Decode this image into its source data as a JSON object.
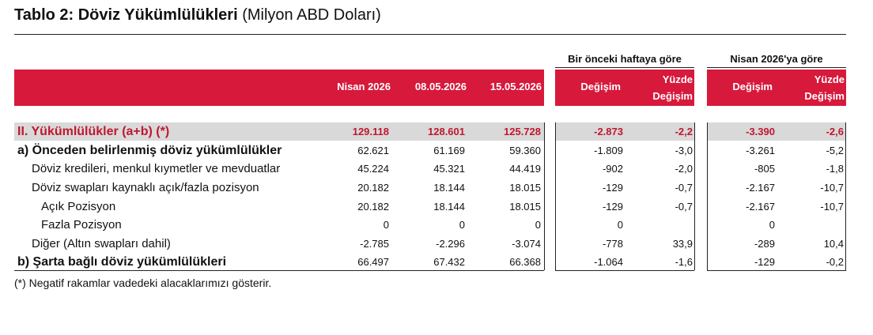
{
  "title": {
    "bold": "Tablo 2: Döviz Yükümlülükleri",
    "sub": "(Milyon ABD Doları)"
  },
  "groups": {
    "weekly": "Bir önceki haftaya göre",
    "monthly": "Nisan 2026'ya göre"
  },
  "headers": {
    "col1": "Nisan 2026",
    "col2": "08.05.2026",
    "col3": "15.05.2026",
    "w_change": "Değişim",
    "w_pct_l1": "Yüzde",
    "w_pct_l2": "Değişim",
    "m_change": "Değişim",
    "m_pct_l1": "Yüzde",
    "m_pct_l2": "Değişim"
  },
  "rows": [
    {
      "label": "II. Yükümlülükler (a+b) (*)",
      "c1": "129.118",
      "c2": "128.601",
      "c3": "125.728",
      "wc": "-2.873",
      "wp": "-2,2",
      "mc": "-3.390",
      "mp": "-2,6"
    },
    {
      "label": "a) Önceden belirlenmiş döviz yükümlülükler",
      "c1": "62.621",
      "c2": "61.169",
      "c3": "59.360",
      "wc": "-1.809",
      "wp": "-3,0",
      "mc": "-3.261",
      "mp": "-5,2"
    },
    {
      "label": "Döviz kredileri, menkul kıymetler ve mevduatlar",
      "c1": "45.224",
      "c2": "45.321",
      "c3": "44.419",
      "wc": "-902",
      "wp": "-2,0",
      "mc": "-805",
      "mp": "-1,8"
    },
    {
      "label": "Döviz swapları kaynaklı açık/fazla pozisyon",
      "c1": "20.182",
      "c2": "18.144",
      "c3": "18.015",
      "wc": "-129",
      "wp": "-0,7",
      "mc": "-2.167",
      "mp": "-10,7"
    },
    {
      "label": "Açık Pozisyon",
      "c1": "20.182",
      "c2": "18.144",
      "c3": "18.015",
      "wc": "-129",
      "wp": "-0,7",
      "mc": "-2.167",
      "mp": "-10,7"
    },
    {
      "label": "Fazla Pozisyon",
      "c1": "0",
      "c2": "0",
      "c3": "0",
      "wc": "0",
      "wp": "",
      "mc": "0",
      "mp": ""
    },
    {
      "label": "Diğer (Altın swapları dahil)",
      "c1": "-2.785",
      "c2": "-2.296",
      "c3": "-3.074",
      "wc": "-778",
      "wp": "33,9",
      "mc": "-289",
      "mp": "10,4"
    },
    {
      "label": "b) Şarta bağlı döviz yükümlülükleri",
      "c1": "66.497",
      "c2": "67.432",
      "c3": "66.368",
      "wc": "-1.064",
      "wp": "-1,6",
      "mc": "-129",
      "mp": "-0,2"
    }
  ],
  "note": "(*) Negatif rakamlar vadedeki alacaklarımızı gösterir.",
  "colors": {
    "header_red": "#d7193b",
    "total_red": "#c0172f",
    "shade_gray": "#d9d9d9"
  }
}
